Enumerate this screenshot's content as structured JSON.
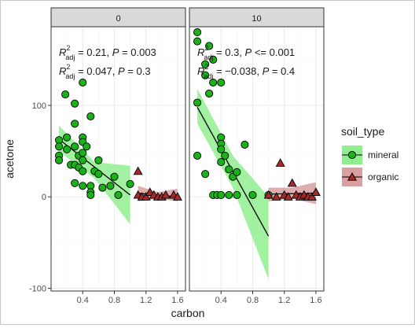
{
  "chart_data": {
    "type": "scatter",
    "facet_variable": "",
    "panels": [
      {
        "strip_label": "0",
        "annotations": [
          {
            "r2_value": "0.21",
            "p_op": "=",
            "p_value": "0.003"
          },
          {
            "r2_value": "0.047",
            "p_op": "=",
            "p_value": "0.3"
          }
        ],
        "series": [
          {
            "name": "mineral",
            "points": [
              [
                0.1,
                62
              ],
              [
                0.1,
                55
              ],
              [
                0.1,
                45
              ],
              [
                0.1,
                40
              ],
              [
                0.18,
                112
              ],
              [
                0.2,
                65
              ],
              [
                0.2,
                52
              ],
              [
                0.25,
                35
              ],
              [
                0.3,
                102
              ],
              [
                0.3,
                80
              ],
              [
                0.3,
                55
              ],
              [
                0.3,
                35
              ],
              [
                0.3,
                15
              ],
              [
                0.35,
                32
              ],
              [
                0.35,
                45
              ],
              [
                0.4,
                125
              ],
              [
                0.4,
                65
              ],
              [
                0.4,
                60
              ],
              [
                0.4,
                48
              ],
              [
                0.4,
                40
              ],
              [
                0.4,
                28
              ],
              [
                0.4,
                12
              ],
              [
                0.45,
                55
              ],
              [
                0.5,
                88
              ],
              [
                0.5,
                12
              ],
              [
                0.5,
                5
              ],
              [
                0.5,
                2
              ],
              [
                0.55,
                28
              ],
              [
                0.6,
                40
              ],
              [
                0.6,
                25
              ],
              [
                0.65,
                10
              ],
              [
                0.75,
                12
              ],
              [
                0.8,
                22
              ],
              [
                0.85,
                2
              ],
              [
                1.0,
                14
              ]
            ],
            "fit": {
              "x": [
                0.1,
                1.0
              ],
              "y": [
                63,
                2
              ]
            },
            "band": {
              "x": [
                0.1,
                0.55,
                1.0
              ],
              "lower": [
                50,
                20,
                -30
              ],
              "upper": [
                78,
                38,
                34
              ]
            }
          },
          {
            "name": "organic",
            "points": [
              [
                1.1,
                28
              ],
              [
                1.1,
                2
              ],
              [
                1.15,
                0
              ],
              [
                1.2,
                0
              ],
              [
                1.25,
                5
              ],
              [
                1.3,
                2
              ],
              [
                1.35,
                0
              ],
              [
                1.4,
                0
              ],
              [
                1.45,
                2
              ],
              [
                1.55,
                2
              ],
              [
                1.6,
                0
              ]
            ],
            "fit": {
              "x": [
                1.1,
                1.6
              ],
              "y": [
                4,
                0
              ]
            },
            "band": {
              "x": [
                1.1,
                1.35,
                1.6
              ],
              "lower": [
                -5,
                -2,
                -5
              ],
              "upper": [
                12,
                5,
                9
              ]
            }
          }
        ]
      },
      {
        "strip_label": "10",
        "annotations": [
          {
            "r2_value": "0.3",
            "p_op": "<=",
            "p_value": "0.001"
          },
          {
            "r2_value": "−0.038",
            "p_op": "=",
            "p_value": "0.4"
          }
        ],
        "series": [
          {
            "name": "mineral",
            "points": [
              [
                0.1,
                180
              ],
              [
                0.1,
                170
              ],
              [
                0.1,
                103
              ],
              [
                0.1,
                45
              ],
              [
                0.2,
                145
              ],
              [
                0.2,
                133
              ],
              [
                0.2,
                25
              ],
              [
                0.25,
                165
              ],
              [
                0.25,
                113
              ],
              [
                0.3,
                150
              ],
              [
                0.3,
                125
              ],
              [
                0.3,
                2
              ],
              [
                0.35,
                2
              ],
              [
                0.4,
                125
              ],
              [
                0.4,
                65
              ],
              [
                0.4,
                58
              ],
              [
                0.4,
                52
              ],
              [
                0.4,
                38
              ],
              [
                0.4,
                2
              ],
              [
                0.45,
                45
              ],
              [
                0.5,
                30
              ],
              [
                0.5,
                2
              ],
              [
                0.55,
                22
              ],
              [
                0.6,
                27
              ],
              [
                0.6,
                2
              ],
              [
                0.7,
                57
              ],
              [
                0.8,
                2
              ],
              [
                1.0,
                2
              ]
            ],
            "fit": {
              "x": [
                0.1,
                1.0
              ],
              "y": [
                98,
                -43
              ]
            },
            "band": {
              "x": [
                0.1,
                0.55,
                1.0
              ],
              "lower": [
                80,
                10,
                -90
              ],
              "upper": [
                118,
                45,
                0
              ]
            }
          },
          {
            "name": "organic",
            "points": [
              [
                1.0,
                2
              ],
              [
                1.1,
                0
              ],
              [
                1.15,
                37
              ],
              [
                1.2,
                2
              ],
              [
                1.25,
                0
              ],
              [
                1.3,
                15
              ],
              [
                1.35,
                2
              ],
              [
                1.4,
                0
              ],
              [
                1.45,
                2
              ],
              [
                1.5,
                0
              ],
              [
                1.55,
                0
              ],
              [
                1.6,
                5
              ]
            ],
            "fit": {
              "x": [
                1.0,
                1.6
              ],
              "y": [
                3,
                4
              ]
            },
            "band": {
              "x": [
                1.0,
                1.3,
                1.6
              ],
              "lower": [
                -5,
                -2,
                -8
              ],
              "upper": [
                10,
                10,
                16
              ]
            }
          }
        ]
      }
    ],
    "xlabel": "carbon",
    "ylabel": "acetone",
    "xlim": [
      0,
      1.7
    ],
    "ylim": [
      -103,
      186
    ],
    "x_ticks": [
      0.4,
      0.8,
      1.2,
      1.6
    ],
    "x_tick_labels": [
      "0.4",
      "0.8",
      "1.2",
      "1.6"
    ],
    "y_ticks": [
      100,
      0,
      -100
    ],
    "y_tick_labels": [
      "100",
      "0",
      "-100"
    ],
    "legend": {
      "title": "soil_type",
      "position": "right",
      "entries": [
        {
          "name": "mineral",
          "shape": "circle"
        },
        {
          "name": "organic",
          "shape": "triangle"
        }
      ]
    },
    "colors": {
      "mineral_fill": "#19b219",
      "mineral_band": "#90ee90",
      "organic_fill": "#a52a2a",
      "organic_band": "#d8a0a0",
      "fit_line": "#000000",
      "strip": "#d9d9d9",
      "grid": "#ebebeb"
    },
    "grid": true,
    "theme": "bw"
  }
}
